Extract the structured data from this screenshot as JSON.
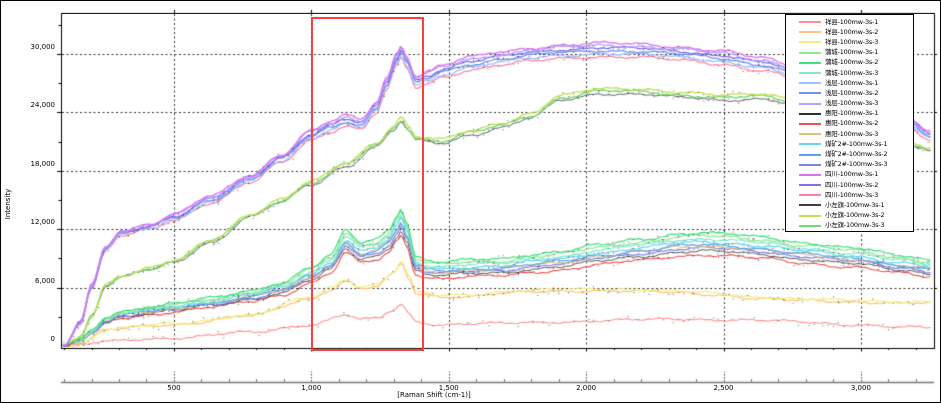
{
  "figure": {
    "title": "",
    "legend_title": "",
    "annotation_box_color": "#f84040"
  },
  "chart_data": {
    "type": "line",
    "title": "",
    "xlabel": "[Raman Shift (cm-1)]",
    "ylabel": "Intensity",
    "xlim": [
      89,
      3266
    ],
    "ylim": [
      -200,
      34200
    ],
    "grid": true,
    "legend_position": "top-right",
    "x_ticks": [
      500,
      1000,
      1500,
      2000,
      2500,
      3000
    ],
    "x_tick_labels": [
      "500",
      "1,000",
      "1,500",
      "2,000",
      "2,500",
      "3,000"
    ],
    "x_minor_step": 100,
    "y_ticks": [
      0,
      6000,
      12000,
      18000,
      24000,
      30000
    ],
    "y_tick_labels": [
      "0",
      "6,000",
      "12,000",
      "18,000",
      "24,000",
      "30,000"
    ],
    "y_minor_step": 3000,
    "annotation_box": {
      "x_range": [
        1000,
        1395
      ],
      "y_range": [
        -100,
        33750
      ]
    },
    "base_curves": {
      "top": [
        [
          100,
          0
        ],
        [
          160,
          2400
        ],
        [
          200,
          6100
        ],
        [
          252,
          10000
        ],
        [
          307,
          11600
        ],
        [
          416,
          12300
        ],
        [
          500,
          13300
        ],
        [
          635,
          15100
        ],
        [
          780,
          17200
        ],
        [
          890,
          19300
        ],
        [
          1000,
          21700
        ],
        [
          1070,
          22600
        ],
        [
          1126,
          23200
        ],
        [
          1180,
          22800
        ],
        [
          1236,
          24500
        ],
        [
          1275,
          27000
        ],
        [
          1310,
          29400
        ],
        [
          1327,
          30300
        ],
        [
          1345,
          29300
        ],
        [
          1381,
          27200
        ],
        [
          1430,
          27700
        ],
        [
          1472,
          28300
        ],
        [
          1582,
          29100
        ],
        [
          1690,
          29600
        ],
        [
          1800,
          30000
        ],
        [
          1909,
          30300
        ],
        [
          2055,
          30500
        ],
        [
          2200,
          30400
        ],
        [
          2347,
          30100
        ],
        [
          2492,
          29700
        ],
        [
          2638,
          29000
        ],
        [
          2784,
          28000
        ],
        [
          2966,
          26100
        ],
        [
          3148,
          23500
        ],
        [
          3257,
          21600
        ]
      ],
      "green": [
        [
          100,
          0
        ],
        [
          160,
          900
        ],
        [
          200,
          3000
        ],
        [
          252,
          6300
        ],
        [
          307,
          7200
        ],
        [
          416,
          8000
        ],
        [
          500,
          8700
        ],
        [
          635,
          10800
        ],
        [
          780,
          13500
        ],
        [
          890,
          15000
        ],
        [
          1000,
          16800
        ],
        [
          1126,
          18700
        ],
        [
          1236,
          20800
        ],
        [
          1300,
          22500
        ],
        [
          1327,
          23400
        ],
        [
          1355,
          22400
        ],
        [
          1381,
          21400
        ],
        [
          1472,
          21100
        ],
        [
          1582,
          22000
        ],
        [
          1690,
          22800
        ],
        [
          1800,
          23800
        ],
        [
          1909,
          25600
        ],
        [
          2055,
          26300
        ],
        [
          2200,
          26300
        ],
        [
          2347,
          25900
        ],
        [
          2492,
          25600
        ],
        [
          2638,
          25800
        ],
        [
          2784,
          25100
        ],
        [
          2966,
          23500
        ],
        [
          3148,
          21100
        ],
        [
          3257,
          20300
        ]
      ],
      "middle": [
        [
          100,
          0
        ],
        [
          160,
          550
        ],
        [
          200,
          1400
        ],
        [
          252,
          2600
        ],
        [
          307,
          3200
        ],
        [
          416,
          3600
        ],
        [
          500,
          3900
        ],
        [
          635,
          4400
        ],
        [
          780,
          5100
        ],
        [
          890,
          5800
        ],
        [
          1000,
          7200
        ],
        [
          1070,
          8300
        ],
        [
          1126,
          10600
        ],
        [
          1180,
          9500
        ],
        [
          1236,
          9800
        ],
        [
          1280,
          10600
        ],
        [
          1310,
          11900
        ],
        [
          1327,
          12700
        ],
        [
          1345,
          11500
        ],
        [
          1381,
          8200
        ],
        [
          1430,
          7800
        ],
        [
          1472,
          7700
        ],
        [
          1582,
          7900
        ],
        [
          1690,
          8000
        ],
        [
          1800,
          8400
        ],
        [
          1909,
          8700
        ],
        [
          2055,
          9300
        ],
        [
          2200,
          9800
        ],
        [
          2347,
          10300
        ],
        [
          2430,
          10400
        ],
        [
          2492,
          10300
        ],
        [
          2638,
          10000
        ],
        [
          2784,
          9500
        ],
        [
          2966,
          9000
        ],
        [
          3148,
          8300
        ],
        [
          3257,
          7900
        ]
      ],
      "yellow": [
        [
          100,
          0
        ],
        [
          160,
          250
        ],
        [
          252,
          1700
        ],
        [
          416,
          2100
        ],
        [
          500,
          2300
        ],
        [
          780,
          3200
        ],
        [
          1000,
          5000
        ],
        [
          1070,
          6000
        ],
        [
          1126,
          6900
        ],
        [
          1180,
          6100
        ],
        [
          1236,
          6300
        ],
        [
          1300,
          7600
        ],
        [
          1327,
          8700
        ],
        [
          1355,
          7200
        ],
        [
          1381,
          5500
        ],
        [
          1472,
          5200
        ],
        [
          1582,
          5300
        ],
        [
          1690,
          5600
        ],
        [
          1800,
          5700
        ],
        [
          1909,
          5800
        ],
        [
          2055,
          5900
        ],
        [
          2200,
          5800
        ],
        [
          2347,
          5600
        ],
        [
          2492,
          5400
        ],
        [
          2638,
          5000
        ],
        [
          2784,
          4800
        ],
        [
          2966,
          4700
        ],
        [
          3148,
          4550
        ],
        [
          3257,
          4500
        ]
      ],
      "bottom": [
        [
          100,
          0
        ],
        [
          160,
          150
        ],
        [
          252,
          450
        ],
        [
          416,
          750
        ],
        [
          500,
          850
        ],
        [
          780,
          1400
        ],
        [
          1000,
          2200
        ],
        [
          1126,
          3200
        ],
        [
          1180,
          2700
        ],
        [
          1236,
          2800
        ],
        [
          1300,
          3700
        ],
        [
          1327,
          4300
        ],
        [
          1355,
          3300
        ],
        [
          1381,
          2500
        ],
        [
          1472,
          2200
        ],
        [
          1582,
          2300
        ],
        [
          1690,
          2300
        ],
        [
          1800,
          2400
        ],
        [
          1909,
          2500
        ],
        [
          2055,
          2600
        ],
        [
          2200,
          2700
        ],
        [
          2347,
          2800
        ],
        [
          2492,
          2700
        ],
        [
          2638,
          2600
        ],
        [
          2784,
          2500
        ],
        [
          2966,
          2200
        ],
        [
          3148,
          1900
        ],
        [
          3257,
          1900
        ]
      ]
    },
    "series": [
      {
        "label": "祥县-100mw-3s-1",
        "color": "#ff9090",
        "curve": "bottom",
        "scale": 1.0,
        "width": 1.1
      },
      {
        "label": "祥县-100mw-3s-2",
        "color": "#ffc080",
        "curve": "yellow",
        "scale": 0.97,
        "width": 1.2
      },
      {
        "label": "祥县-100mw-3s-3",
        "color": "#f0f080",
        "curve": "yellow",
        "scale": 1.0,
        "width": 1.2
      },
      {
        "label": "蒲城-100mw-3s-1",
        "color": "#90e890",
        "curve": "middle",
        "scale": 1.09,
        "width": 1.2
      },
      {
        "label": "蒲城-100mw-3s-2",
        "color": "#40e080",
        "curve": "middle",
        "scale": 1.12,
        "width": 1.2
      },
      {
        "label": "蒲城-100mw-3s-3",
        "color": "#80e8d0",
        "curve": "middle",
        "scale": 1.06,
        "width": 1.2
      },
      {
        "label": "浅层-100mw-3s-1",
        "color": "#a0c0ff",
        "curve": "top",
        "scale": 0.985,
        "width": 1.3
      },
      {
        "label": "浅层-100mw-3s-2",
        "color": "#7090f0",
        "curve": "top",
        "scale": 0.995,
        "width": 1.3
      },
      {
        "label": "浅层-100mw-3s-3",
        "color": "#b0a0ff",
        "curve": "top",
        "scale": 1.012,
        "width": 1.3
      },
      {
        "label": "惠阳-100mw-3s-1",
        "color": "#303030",
        "curve": "middle",
        "scale": 0.94,
        "width": 0.8
      },
      {
        "label": "惠阳-100mw-3s-2",
        "color": "#f05050",
        "curve": "middle",
        "scale": 0.9,
        "width": 1.1
      },
      {
        "label": "惠阳-100mw-3s-3",
        "color": "#e0c080",
        "curve": "middle",
        "scale": 0.99,
        "width": 1.1
      },
      {
        "label": "煤矿2#-100mw-3s-1",
        "color": "#60d8e8",
        "curve": "middle",
        "scale": 1.03,
        "width": 1.2
      },
      {
        "label": "煤矿2#-100mw-3s-2",
        "color": "#60a0f0",
        "curve": "middle",
        "scale": 1.0,
        "width": 1.2
      },
      {
        "label": "煤矿2#-100mw-3s-3",
        "color": "#8080e8",
        "curve": "middle",
        "scale": 0.97,
        "width": 1.2
      },
      {
        "label": "四川-100mw-3s-1",
        "color": "#e070f0",
        "curve": "top",
        "scale": 1.02,
        "width": 1.3
      },
      {
        "label": "四川-100mw-3s-2",
        "color": "#8070f0",
        "curve": "top",
        "scale": 1.005,
        "width": 1.3
      },
      {
        "label": "四川-100mw-3s-3",
        "color": "#ff80a0",
        "curve": "top",
        "scale": 0.975,
        "width": 1.2
      },
      {
        "label": "小左旗-100mw-3s-1",
        "color": "#404040",
        "curve": "green",
        "scale": 0.985,
        "width": 0.8
      },
      {
        "label": "小左旗-100mw-3s-2",
        "color": "#c0e050",
        "curve": "green",
        "scale": 1.005,
        "width": 1.3
      },
      {
        "label": "小左旗-100mw-3s-3",
        "color": "#70d870",
        "curve": "green",
        "scale": 0.995,
        "width": 1.3
      }
    ]
  }
}
